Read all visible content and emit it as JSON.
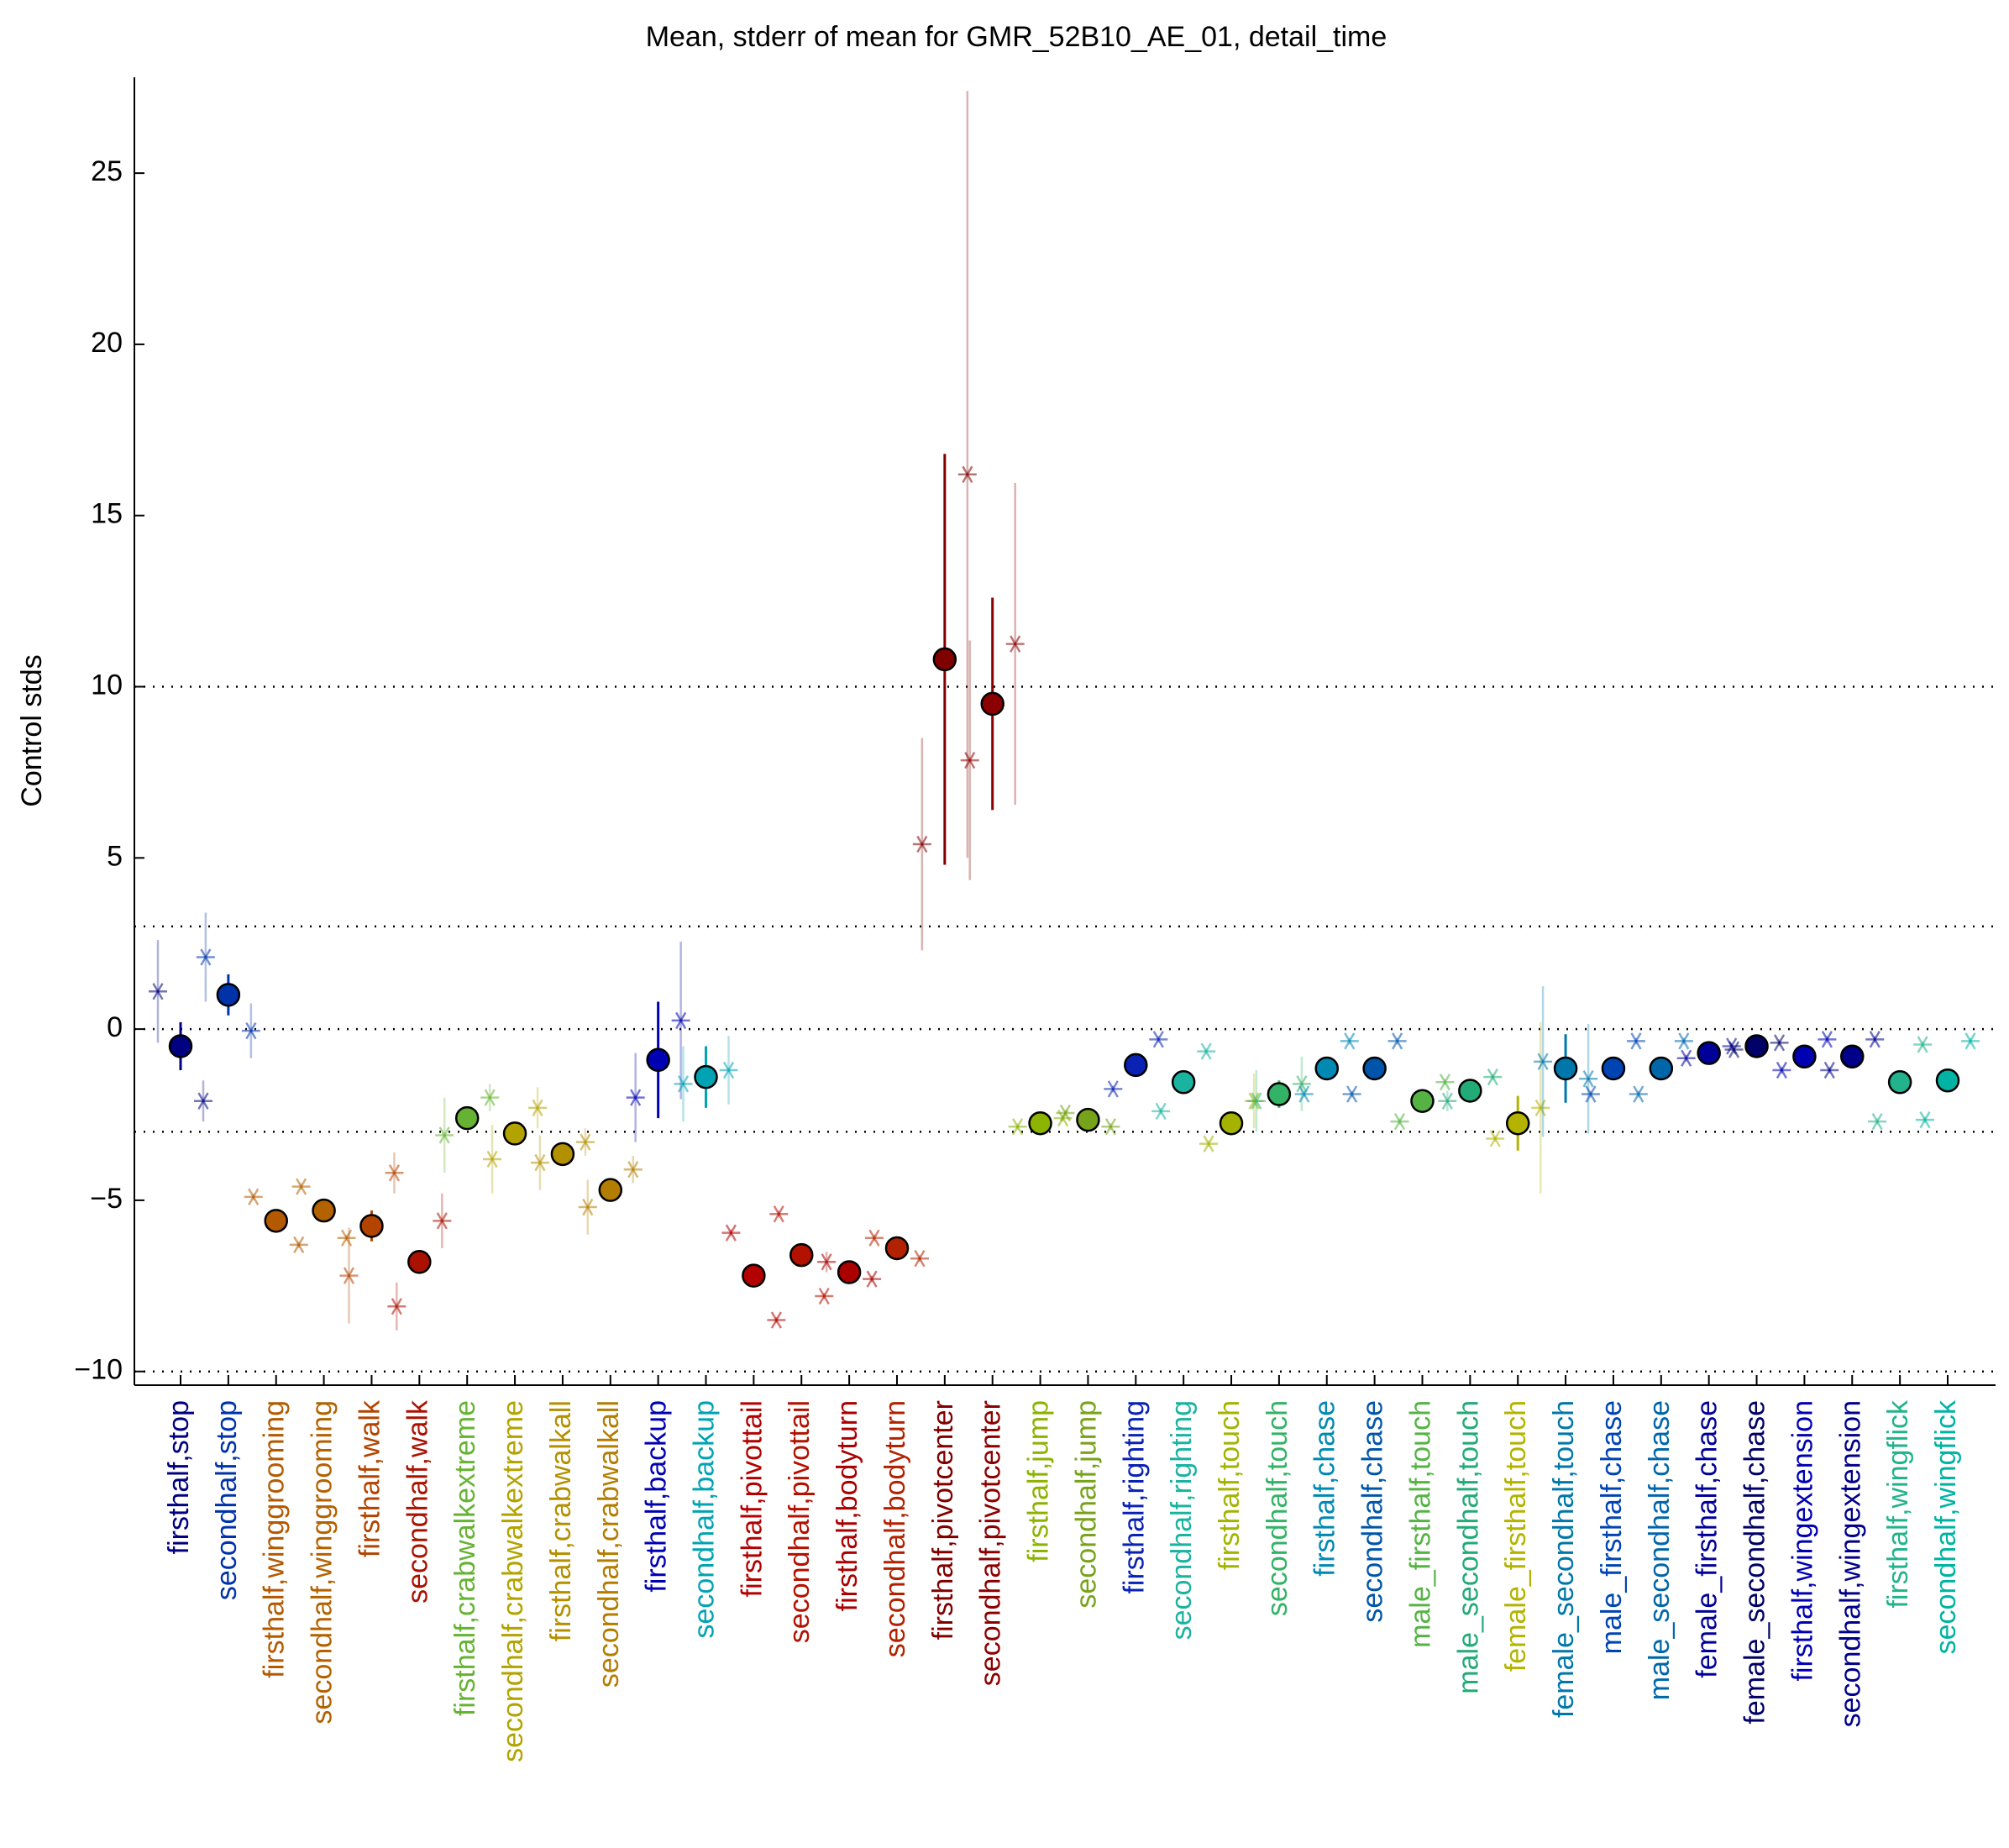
{
  "chart_data": {
    "type": "dot",
    "title": "Mean, stderr of mean for GMR_52B10_AE_01, detail_time",
    "y_label": "Control stds",
    "categories": [
      "firsthalf,stop",
      "secondhalf,stop",
      "firsthalf,winggrooming",
      "secondhalf,winggrooming",
      "firsthalf,walk",
      "secondhalf,walk",
      "firsthalf,crabwalkextreme",
      "secondhalf,crabwalkextreme",
      "firsthalf,crabwalkall",
      "secondhalf,crabwalkall",
      "firsthalf,backup",
      "secondhalf,backup",
      "firsthalf,pivottail",
      "secondhalf,pivottail",
      "firsthalf,bodyturn",
      "secondhalf,bodyturn",
      "firsthalf,pivotcenter",
      "secondhalf,pivotcenter",
      "firsthalf,jump",
      "secondhalf,jump",
      "firsthalf,righting",
      "secondhalf,righting",
      "firsthalf,touch",
      "secondhalf,touch",
      "firsthalf,chase",
      "secondhalf,chase",
      "male_firsthalf,touch",
      "male_secondhalf,touch",
      "female_firsthalf,touch",
      "female_secondhalf,touch",
      "male_firsthalf,chase",
      "male_secondhalf,chase",
      "female_firsthalf,chase",
      "female_secondhalf,chase",
      "firsthalf,wingextension",
      "secondhalf,wingextension",
      "firsthalf,wingflick",
      "secondhalf,wingflick"
    ],
    "colors": [
      "#000080",
      "#0033aa",
      "#b35900",
      "#b36200",
      "#b34400",
      "#aa1100",
      "#66b333",
      "#b3a300",
      "#b39000",
      "#b37d00",
      "#0000b3",
      "#00a3b3",
      "#b30000",
      "#b31100",
      "#aa0000",
      "#b32200",
      "#800000",
      "#8b0000",
      "#8cb300",
      "#77a31a",
      "#0a22b3",
      "#1ab3a0",
      "#a3b300",
      "#33b366",
      "#0089b3",
      "#0055aa",
      "#55b344",
      "#22aa77",
      "#b3b300",
      "#0077aa",
      "#0044b3",
      "#0066aa",
      "#000099",
      "#000066",
      "#0000b3",
      "#000088",
      "#22b38c",
      "#00b3a3"
    ],
    "values": [
      -0.5,
      1.0,
      -5.6,
      -5.3,
      -5.75,
      -6.8,
      -2.6,
      -3.05,
      -3.65,
      -4.7,
      -0.9,
      -1.4,
      -7.2,
      -6.6,
      -7.1,
      -6.4,
      10.8,
      9.5,
      -2.75,
      -2.65,
      -1.05,
      -1.55,
      -2.75,
      -1.9,
      -1.15,
      -1.15,
      -2.1,
      -1.8,
      -2.75,
      -1.15,
      -1.15,
      -1.15,
      -0.7,
      -0.5,
      -0.8,
      -0.8,
      -1.55,
      -1.5
    ],
    "errors": [
      0.7,
      0.6,
      0.1,
      0.1,
      0.45,
      0.35,
      0.3,
      0.2,
      0.2,
      0.15,
      1.7,
      0.9,
      0.1,
      0.1,
      0.1,
      0.1,
      6.0,
      3.1,
      0.1,
      0.1,
      0.1,
      0.1,
      0.1,
      0.4,
      0.1,
      0.1,
      0.1,
      0.15,
      0.8,
      1.0,
      0.1,
      0.1,
      0.1,
      0.1,
      0.1,
      0.1,
      0.1,
      0.1
    ],
    "star_left": [
      1.1,
      2.1,
      -4.9,
      -4.6,
      -7.2,
      -8.1,
      -3.1,
      -3.8,
      -3.9,
      -5.2,
      -2.0,
      -1.6,
      -5.95,
      -5.4,
      -6.8,
      -6.1,
      5.4,
      7.85,
      -2.85,
      -2.45,
      -1.75,
      -2.4,
      -3.35,
      -2.1,
      -1.9,
      -1.9,
      -2.7,
      -2.1,
      -3.2,
      -0.95,
      -1.9,
      -1.9,
      -0.85,
      -0.6,
      -1.2,
      -1.2,
      -2.7,
      -2.65
    ],
    "star_left_errors": [
      1.5,
      1.3,
      0.1,
      0.1,
      1.4,
      0.7,
      1.1,
      1.0,
      0.8,
      0.8,
      1.3,
      1.1,
      0.1,
      0.1,
      0.3,
      0.1,
      3.1,
      3.5,
      0.1,
      0.1,
      0.1,
      0.1,
      0.1,
      0.9,
      0.1,
      0.1,
      0.1,
      0.3,
      0.1,
      2.2,
      0.1,
      0.1,
      0.1,
      0.1,
      0.1,
      0.1,
      0.1,
      0.1
    ],
    "star_right": [
      -2.1,
      -0.05,
      -6.3,
      -6.1,
      -4.2,
      -5.6,
      -2.0,
      -2.3,
      -3.3,
      -4.1,
      0.25,
      -1.2,
      -8.5,
      -7.8,
      -7.3,
      -6.7,
      16.2,
      11.25,
      -2.6,
      -2.85,
      -0.3,
      -0.65,
      -2.1,
      -1.6,
      -0.35,
      -0.35,
      -1.55,
      -1.4,
      -2.3,
      -1.45,
      -0.35,
      -0.35,
      -0.5,
      -0.4,
      -0.3,
      -0.3,
      -0.45,
      -0.35
    ],
    "star_right_errors": [
      0.6,
      0.8,
      0.1,
      0.1,
      0.6,
      0.8,
      0.4,
      0.6,
      0.4,
      0.4,
      2.3,
      1.0,
      0.1,
      0.1,
      0.1,
      0.1,
      11.2,
      4.7,
      0.1,
      0.1,
      0.1,
      0.1,
      0.8,
      0.8,
      0.1,
      0.1,
      0.1,
      0.1,
      2.5,
      1.6,
      0.1,
      0.1,
      0.1,
      0.1,
      0.1,
      0.1,
      0.1,
      0.1
    ],
    "ylim": [
      -10.4,
      27.8
    ],
    "yticks": [
      {
        "value": -10,
        "label": "−10"
      },
      {
        "value": -5,
        "label": "−5"
      },
      0,
      5,
      10,
      15,
      20,
      25
    ],
    "reference_lines": [
      10,
      3,
      0,
      -3,
      -10
    ]
  }
}
